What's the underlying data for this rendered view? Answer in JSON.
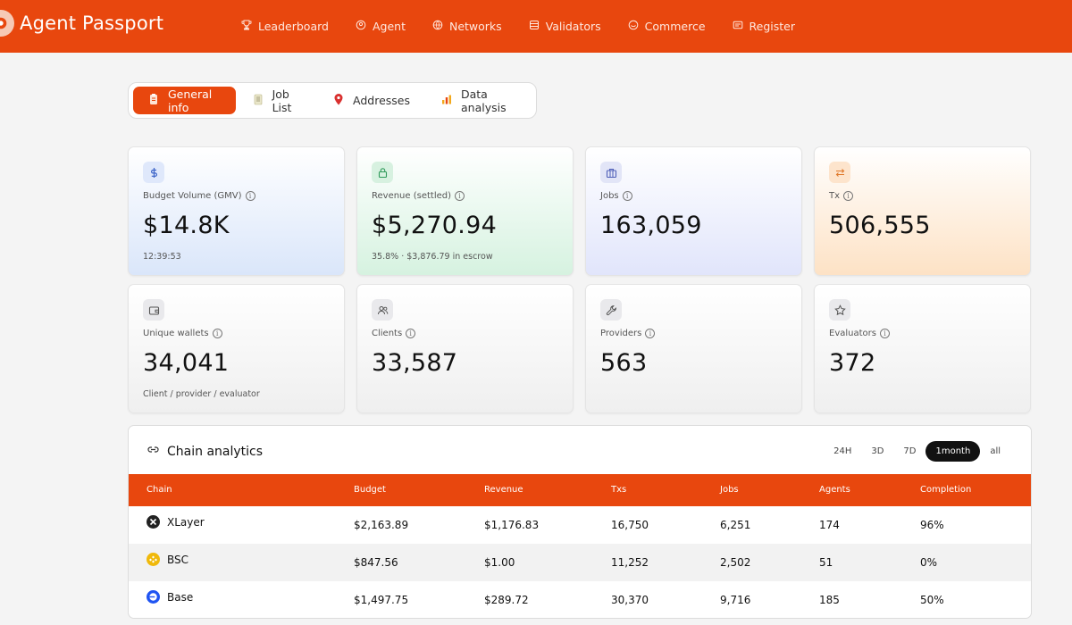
{
  "colors": {
    "brand": "#e8470e",
    "active_range": "#111111"
  },
  "header": {
    "title": "Agent Passport",
    "logo_icon": "passport-logo-icon",
    "nav": [
      {
        "label": "Leaderboard",
        "icon": "trophy-icon"
      },
      {
        "label": "Agent",
        "icon": "agent-icon"
      },
      {
        "label": "Networks",
        "icon": "network-icon"
      },
      {
        "label": "Validators",
        "icon": "database-icon"
      },
      {
        "label": "Commerce",
        "icon": "commerce-icon"
      },
      {
        "label": "Register",
        "icon": "register-icon"
      }
    ]
  },
  "tabs": [
    {
      "label": "General info",
      "icon": "clipboard-icon",
      "active": true
    },
    {
      "label": "Job List",
      "icon": "list-icon",
      "active": false
    },
    {
      "label": "Addresses",
      "icon": "map-pin-icon",
      "active": false
    },
    {
      "label": "Data analysis",
      "icon": "bar-chart-icon",
      "active": false
    }
  ],
  "stats": {
    "budget": {
      "label": "Budget Volume (GMV)",
      "value": "$14.8K",
      "sub": "12:39:53",
      "icon": "dollar-icon"
    },
    "revenue": {
      "label": "Revenue (settled)",
      "value": "$5,270.94",
      "sub": "35.8% · $3,876.79 in escrow",
      "icon": "lock-icon"
    },
    "jobs": {
      "label": "Jobs",
      "value": "163,059",
      "icon": "briefcase-icon"
    },
    "tx": {
      "label": "Tx",
      "value": "506,555",
      "icon": "swap-icon"
    },
    "wallets": {
      "label": "Unique wallets",
      "value": "34,041",
      "sub": "Client / provider / evaluator",
      "icon": "wallet-icon"
    },
    "clients": {
      "label": "Clients",
      "value": "33,587",
      "icon": "users-icon"
    },
    "providers": {
      "label": "Providers",
      "value": "563",
      "icon": "wrench-icon"
    },
    "evaluators": {
      "label": "Evaluators",
      "value": "372",
      "icon": "star-icon"
    }
  },
  "analytics": {
    "title": "Chain analytics",
    "title_icon": "link-icon",
    "ranges": [
      "24H",
      "3D",
      "7D",
      "1month",
      "all"
    ],
    "active_range": "1month",
    "columns": [
      "Chain",
      "Budget",
      "Revenue",
      "Txs",
      "Jobs",
      "Agents",
      "Completion"
    ],
    "rows": [
      {
        "chain": "XLayer",
        "icon": "xlayer-icon",
        "budget": "$2,163.89",
        "revenue": "$1,176.83",
        "txs": "16,750",
        "jobs": "6,251",
        "agents": "174",
        "completion": "96%"
      },
      {
        "chain": "BSC",
        "icon": "bsc-icon",
        "budget": "$847.56",
        "revenue": "$1.00",
        "txs": "11,252",
        "jobs": "2,502",
        "agents": "51",
        "completion": "0%"
      },
      {
        "chain": "Base",
        "icon": "base-icon",
        "budget": "$1,497.75",
        "revenue": "$289.72",
        "txs": "30,370",
        "jobs": "9,716",
        "agents": "185",
        "completion": "50%"
      }
    ]
  }
}
